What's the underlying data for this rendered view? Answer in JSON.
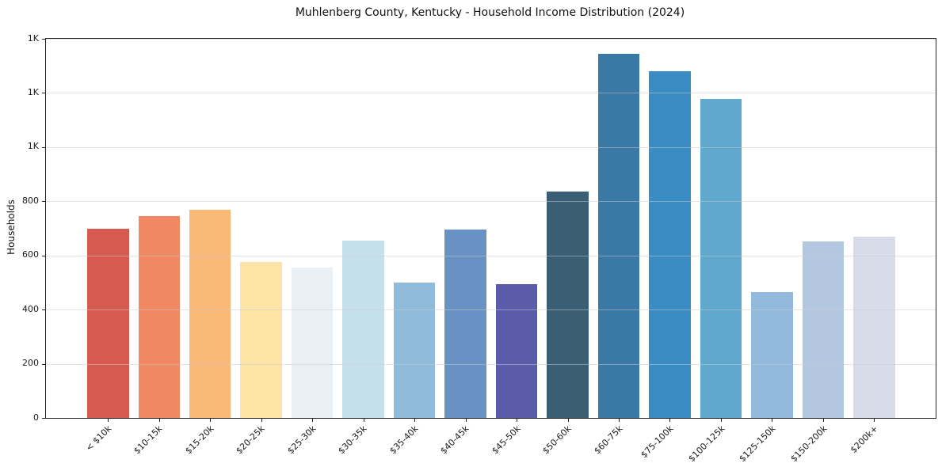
{
  "figure": {
    "background": "#ffffff",
    "spine_color": "#262626",
    "grid_color": "#cbcbcb"
  },
  "chart_data": {
    "type": "bar",
    "title": "Muhlenberg County, Kentucky - Household Income Distribution (2024)",
    "xlabel": "",
    "ylabel": "Households",
    "categories": [
      "< $10k",
      "$10-15k",
      "$15-20k",
      "$20-25k",
      "$25-30k",
      "$30-35k",
      "$35-40k",
      "$40-45k",
      "$45-50k",
      "$50-60k",
      "$60-75k",
      "$75-100k",
      "$100-125k",
      "$125-150k",
      "$150-200k",
      "$200k+"
    ],
    "values": [
      700,
      745,
      768,
      577,
      556,
      655,
      499,
      697,
      494,
      835,
      1344,
      1281,
      1177,
      464,
      653,
      669
    ],
    "bar_colors": [
      "#d75a50",
      "#f28764",
      "#fab976",
      "#fde3a5",
      "#e9f1f7",
      "#c6e0eb",
      "#8fbcdb",
      "#6891c4",
      "#5b5ca9",
      "#3a5f74",
      "#3a79a6",
      "#3a8dc3",
      "#60a8ce",
      "#93badd",
      "#b4c7e0",
      "#d8dbe8"
    ],
    "ylim": [
      0,
      1400
    ],
    "yticks": [
      {
        "value": 0,
        "label": "0"
      },
      {
        "value": 200,
        "label": "200"
      },
      {
        "value": 400,
        "label": "400"
      },
      {
        "value": 600,
        "label": "600"
      },
      {
        "value": 800,
        "label": "800"
      },
      {
        "value": 1000,
        "label": "1K"
      },
      {
        "value": 1200,
        "label": "1K"
      },
      {
        "value": 1400,
        "label": "1K"
      }
    ],
    "grid": "horizontal, drawn over bars",
    "legend": "none"
  }
}
